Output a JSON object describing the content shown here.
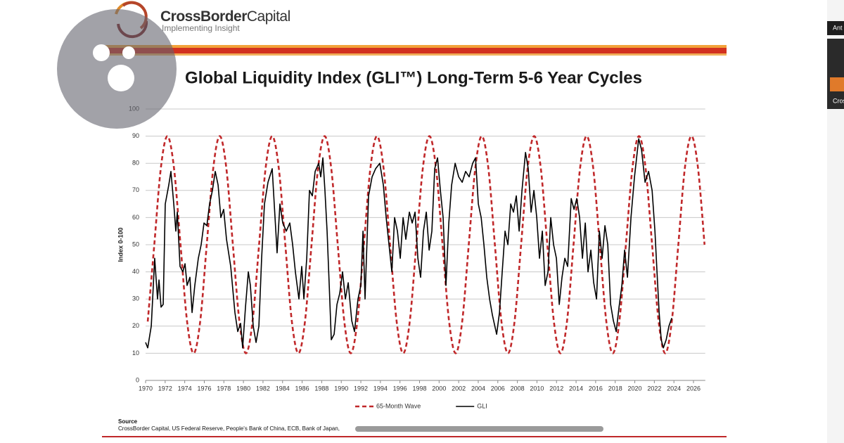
{
  "logo": {
    "name_bold": "CrossBorder",
    "name_light": "Capital",
    "tagline": "Implementing Insight"
  },
  "sidebar": [
    "Ant",
    "Cros"
  ],
  "chart_data": {
    "type": "line",
    "title": "Global Liquidity Index (GLI™) Long-Term 5-6 Year Cycles",
    "y_label": "Index 0-100",
    "xlim": [
      1970,
      2027.2
    ],
    "xticks": [
      1970,
      1972,
      1974,
      1976,
      1978,
      1980,
      1982,
      1984,
      1986,
      1988,
      1990,
      1992,
      1994,
      1996,
      1998,
      2000,
      2002,
      2004,
      2006,
      2008,
      2010,
      2012,
      2014,
      2016,
      2018,
      2020,
      2022,
      2024,
      2026
    ],
    "ylim": [
      0,
      100
    ],
    "yticks": [
      0,
      10,
      20,
      30,
      40,
      50,
      60,
      70,
      80,
      90,
      100
    ],
    "grid": true,
    "legend": "bottom",
    "series": [
      {
        "name": "65-Month Wave",
        "color": "#c0282a",
        "dashed": true,
        "smooth": true,
        "x": [
          1970.22,
          1970.89,
          1971.56,
          1972.23,
          1972.9,
          1973.57,
          1974.24,
          1974.91,
          1975.58,
          1976.25,
          1976.92,
          1977.58,
          1978.25,
          1978.92,
          1979.59,
          1980.26,
          1980.93,
          1981.6,
          1982.27,
          1982.94,
          1983.61,
          1984.28,
          1984.95,
          1985.62,
          1986.29,
          1986.96,
          1987.63,
          1988.3,
          1988.97,
          1989.64,
          1990.31,
          1990.97,
          1991.64,
          1992.31,
          1992.98,
          1993.65,
          1994.32,
          1994.99,
          1995.66,
          1996.33,
          1997.0,
          1997.67,
          1998.34,
          1999.01,
          1999.68,
          2000.35,
          2001.02,
          2001.69,
          2002.36,
          2003.03,
          2003.7,
          2004.36,
          2005.03,
          2005.7,
          2006.37,
          2007.04,
          2007.71,
          2008.38,
          2009.05,
          2009.72,
          2010.39,
          2011.06,
          2011.73,
          2012.4,
          2013.07,
          2013.74,
          2014.41,
          2015.08,
          2015.75,
          2016.42,
          2017.09,
          2017.75,
          2018.42,
          2019.09,
          2019.76,
          2020.43,
          2021.1,
          2021.77,
          2022.44,
          2023.11,
          2023.78,
          2024.45,
          2025.12,
          2025.79,
          2026.46,
          2027.13
        ],
        "values": [
          21.7,
          50,
          78.3,
          90,
          78.3,
          50,
          21.7,
          10,
          21.7,
          50,
          78.3,
          90,
          78.3,
          50,
          21.7,
          10,
          21.7,
          50,
          78.3,
          90,
          78.3,
          50,
          21.7,
          10,
          21.7,
          50,
          78.3,
          90,
          78.3,
          50,
          21.7,
          10,
          21.7,
          50,
          78.3,
          90,
          78.3,
          50,
          21.7,
          10,
          21.7,
          50,
          78.3,
          90,
          78.3,
          50,
          21.7,
          10,
          21.7,
          50,
          78.3,
          90,
          78.3,
          50,
          21.7,
          10,
          21.7,
          50,
          78.3,
          90,
          78.3,
          50,
          21.7,
          10,
          21.7,
          50,
          78.3,
          90,
          78.3,
          50,
          21.7,
          10,
          21.7,
          50,
          78.3,
          90,
          78.3,
          50,
          21.7,
          10,
          21.7,
          50,
          78.3,
          90,
          78.3,
          50
        ]
      },
      {
        "name": "GLI",
        "color": "#000000",
        "dashed": false,
        "smooth": false,
        "x": [
          1970.0,
          1970.22,
          1970.58,
          1970.79,
          1970.93,
          1971.22,
          1971.37,
          1971.58,
          1971.8,
          1972.01,
          1972.37,
          1972.59,
          1972.88,
          1973.09,
          1973.24,
          1973.52,
          1973.81,
          1974.03,
          1974.24,
          1974.53,
          1974.75,
          1975.03,
          1975.39,
          1975.68,
          1975.97,
          1976.26,
          1976.54,
          1976.83,
          1977.12,
          1977.41,
          1977.69,
          1977.98,
          1978.27,
          1978.7,
          1979.13,
          1979.42,
          1979.71,
          1979.92,
          1980.21,
          1980.5,
          1980.71,
          1981.0,
          1981.29,
          1981.58,
          1981.86,
          1982.15,
          1982.51,
          1982.94,
          1983.23,
          1983.44,
          1983.73,
          1984.02,
          1984.38,
          1984.74,
          1985.03,
          1985.31,
          1985.67,
          1985.96,
          1986.18,
          1986.47,
          1986.75,
          1987.04,
          1987.33,
          1987.69,
          1987.9,
          1988.12,
          1988.33,
          1988.55,
          1988.77,
          1988.98,
          1989.27,
          1989.56,
          1989.84,
          1990.13,
          1990.42,
          1990.71,
          1991.07,
          1991.35,
          1991.71,
          1992.0,
          1992.22,
          1992.43,
          1992.79,
          1993.15,
          1993.51,
          1993.94,
          1994.3,
          1994.59,
          1994.88,
          1995.17,
          1995.45,
          1995.74,
          1996.03,
          1996.32,
          1996.6,
          1996.96,
          1997.25,
          1997.54,
          1997.83,
          1998.11,
          1998.4,
          1998.69,
          1998.98,
          1999.26,
          1999.55,
          1999.84,
          2000.13,
          2000.41,
          2000.7,
          2000.99,
          2001.28,
          2001.64,
          2002.0,
          2002.36,
          2002.71,
          2003.07,
          2003.43,
          2003.72,
          2004.01,
          2004.3,
          2004.58,
          2004.87,
          2005.16,
          2005.45,
          2005.88,
          2006.17,
          2006.45,
          2006.74,
          2007.03,
          2007.32,
          2007.6,
          2007.89,
          2008.18,
          2008.47,
          2008.83,
          2009.11,
          2009.4,
          2009.69,
          2009.98,
          2010.26,
          2010.55,
          2010.84,
          2011.13,
          2011.41,
          2011.7,
          2011.99,
          2012.28,
          2012.56,
          2012.85,
          2013.14,
          2013.5,
          2013.79,
          2014.07,
          2014.36,
          2014.65,
          2014.94,
          2015.22,
          2015.51,
          2015.8,
          2016.09,
          2016.38,
          2016.66,
          2016.95,
          2017.24,
          2017.53,
          2017.81,
          2018.1,
          2018.39,
          2018.68,
          2018.96,
          2019.25,
          2019.61,
          2019.97,
          2020.4,
          2020.69,
          2021.05,
          2021.41,
          2021.77,
          2022.06,
          2022.27,
          2022.49,
          2022.7,
          2022.92,
          2023.21,
          2023.49,
          2023.78
        ],
        "values": [
          14,
          12,
          20,
          35,
          45,
          30,
          37,
          27,
          28,
          65,
          72,
          77,
          65,
          55,
          62,
          42,
          40,
          43,
          35,
          38,
          25,
          35,
          45,
          50,
          58,
          57,
          65,
          70,
          77,
          72,
          60,
          63,
          52,
          42,
          25,
          18,
          21,
          12,
          27,
          40,
          35,
          20,
          14,
          20,
          45,
          65,
          73,
          78,
          60,
          47,
          65,
          58,
          55,
          58,
          50,
          40,
          30,
          42,
          30,
          45,
          70,
          68,
          77,
          80,
          75,
          82,
          70,
          55,
          35,
          15,
          17,
          28,
          32,
          40,
          30,
          36,
          22,
          18,
          30,
          35,
          55,
          30,
          68,
          75,
          78,
          80,
          72,
          60,
          50,
          40,
          60,
          55,
          45,
          60,
          52,
          62,
          58,
          62,
          45,
          38,
          55,
          62,
          48,
          55,
          78,
          82,
          70,
          60,
          35,
          58,
          72,
          80,
          75,
          73,
          77,
          75,
          80,
          82,
          65,
          60,
          50,
          38,
          30,
          24,
          17,
          25,
          40,
          55,
          50,
          65,
          62,
          68,
          55,
          70,
          84,
          78,
          62,
          70,
          60,
          45,
          55,
          35,
          40,
          60,
          50,
          45,
          28,
          38,
          45,
          42,
          67,
          63,
          67,
          60,
          45,
          58,
          40,
          48,
          36,
          30,
          55,
          45,
          57,
          50,
          28,
          22,
          18,
          27,
          35,
          48,
          38,
          60,
          75,
          89,
          85,
          73,
          77,
          70,
          55,
          40,
          25,
          15,
          12,
          15,
          20,
          23
        ]
      }
    ],
    "source_label": "Source",
    "source": "CrossBorder Capital, US Federal Reserve, People's Bank of China, ECB, Bank of Japan,"
  }
}
